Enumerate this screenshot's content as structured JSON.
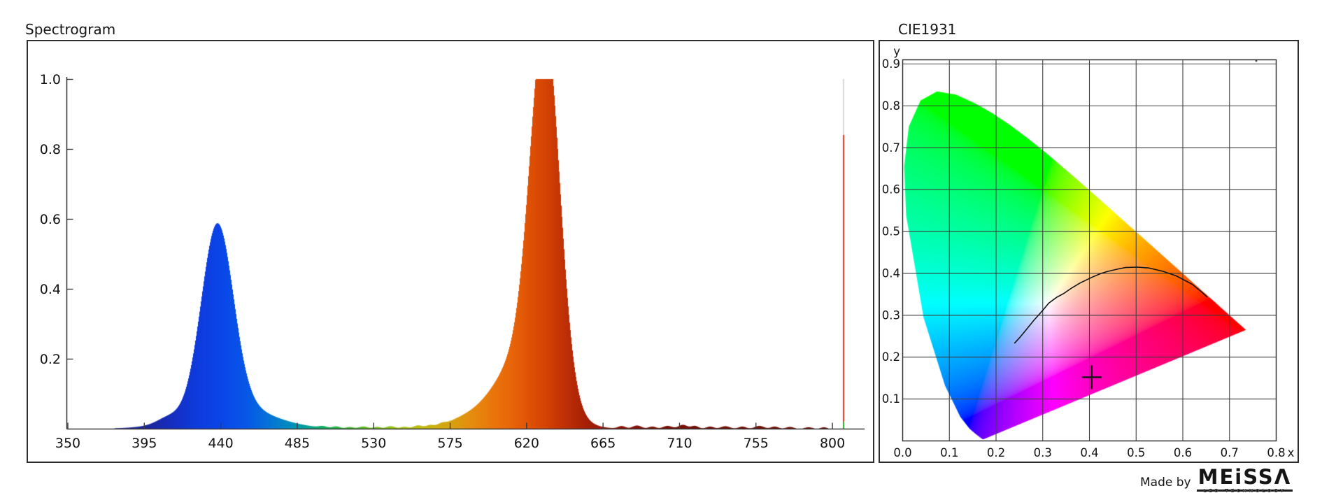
{
  "left_panel": {
    "title": "Spectrogram",
    "x_tick_labels": [
      "350",
      "395",
      "440",
      "485",
      "530",
      "575",
      "620",
      "665",
      "710",
      "755",
      "800"
    ],
    "y_tick_labels": [
      "0.2",
      "0.4",
      "0.6",
      "0.8",
      "1.0"
    ]
  },
  "right_panel": {
    "title": "CIE1931",
    "x_tick_labels": [
      "0.0",
      "0.1",
      "0.2",
      "0.3",
      "0.4",
      "0.5",
      "0.6",
      "0.7",
      "0.8"
    ],
    "x_axis_letter": "x",
    "y_axis_letter": "y",
    "y_tick_labels": [
      "0.1",
      "0.2",
      "0.3",
      "0.4",
      "0.5",
      "0.6",
      "0.7",
      "0.8",
      "0.9"
    ]
  },
  "footer": {
    "made_by": "Made by",
    "brand": "MEiSSA",
    "brand_sub": "LED TECHNOLOGY"
  },
  "chart_data": [
    {
      "type": "area",
      "title": "Spectrogram",
      "xlim": [
        350,
        815.2
      ],
      "ylim": [
        0,
        1.056
      ],
      "x_ticks": [
        350,
        395,
        440,
        485,
        530,
        575,
        620,
        665,
        710,
        755,
        800
      ],
      "y_ticks": [
        0.2,
        0.4,
        0.6,
        0.8,
        1.0
      ],
      "grid": false,
      "peaks": [
        {
          "name": "blue-led",
          "center": 438,
          "height": 0.52,
          "fwhm_nm": 22,
          "skirt": {
            "center": 444,
            "height": 0.07,
            "fwhm_nm": 55
          }
        },
        {
          "name": "red-led",
          "center": 631,
          "height": 1.0,
          "fwhm_nm": 20,
          "skirt": {
            "center": 621,
            "height": 0.2,
            "fwhm_nm": 38
          }
        }
      ],
      "spike": {
        "center": 806,
        "segments": [
          {
            "from": 0.84,
            "to": 1.0,
            "color": "#d8d8d8"
          },
          {
            "from": 0.02,
            "to": 0.84,
            "color": "#e8382a"
          },
          {
            "from": 0.0,
            "to": 0.02,
            "color": "#2fae2f"
          }
        ]
      },
      "minor_bumps": [
        [
          408,
          0.012,
          14
        ],
        [
          580,
          0.008,
          20
        ],
        [
          600,
          0.035,
          40
        ],
        [
          500,
          0.004,
          5
        ],
        [
          508,
          0.005,
          5
        ],
        [
          516,
          0.004,
          5
        ],
        [
          524,
          0.006,
          6
        ],
        [
          532,
          0.005,
          5
        ],
        [
          540,
          0.007,
          6
        ],
        [
          548,
          0.005,
          5
        ],
        [
          556,
          0.008,
          6
        ],
        [
          563,
          0.006,
          5
        ],
        [
          570,
          0.005,
          5
        ],
        [
          676,
          0.007,
          5
        ],
        [
          685,
          0.009,
          6
        ],
        [
          694,
          0.006,
          5
        ],
        [
          703,
          0.008,
          6
        ],
        [
          712,
          0.011,
          6
        ],
        [
          719,
          0.008,
          5
        ],
        [
          728,
          0.006,
          5
        ],
        [
          737,
          0.007,
          6
        ],
        [
          747,
          0.006,
          5
        ],
        [
          757,
          0.008,
          6
        ],
        [
          766,
          0.006,
          5
        ],
        [
          775,
          0.005,
          5
        ],
        [
          786,
          0.004,
          5
        ],
        [
          795,
          0.004,
          4
        ]
      ]
    },
    {
      "type": "cie_chromaticity",
      "title": "CIE1931",
      "xlim": [
        0,
        0.8
      ],
      "ylim": [
        0,
        0.91
      ],
      "x_ticks": [
        0.0,
        0.1,
        0.2,
        0.3,
        0.4,
        0.5,
        0.6,
        0.7,
        0.8
      ],
      "y_ticks": [
        0.1,
        0.2,
        0.3,
        0.4,
        0.5,
        0.6,
        0.7,
        0.8,
        0.9
      ],
      "grid": true,
      "spectral_locus": [
        [
          380,
          0.1741,
          0.005
        ],
        [
          400,
          0.1733,
          0.0048
        ],
        [
          410,
          0.1726,
          0.0048
        ],
        [
          420,
          0.1714,
          0.0051
        ],
        [
          430,
          0.1689,
          0.0069
        ],
        [
          440,
          0.1644,
          0.0109
        ],
        [
          450,
          0.1566,
          0.0177
        ],
        [
          460,
          0.144,
          0.0297
        ],
        [
          470,
          0.1241,
          0.0578
        ],
        [
          480,
          0.0913,
          0.1327
        ],
        [
          490,
          0.0454,
          0.295
        ],
        [
          500,
          0.0082,
          0.5384
        ],
        [
          505,
          0.0039,
          0.6548
        ],
        [
          510,
          0.0139,
          0.7502
        ],
        [
          515,
          0.0389,
          0.812
        ],
        [
          520,
          0.0743,
          0.8338
        ],
        [
          525,
          0.1142,
          0.8262
        ],
        [
          530,
          0.1547,
          0.8059
        ],
        [
          535,
          0.1929,
          0.7816
        ],
        [
          540,
          0.2296,
          0.7543
        ],
        [
          545,
          0.2658,
          0.7243
        ],
        [
          550,
          0.3016,
          0.6923
        ],
        [
          555,
          0.3373,
          0.6589
        ],
        [
          560,
          0.3731,
          0.6245
        ],
        [
          565,
          0.4087,
          0.5896
        ],
        [
          570,
          0.4441,
          0.5547
        ],
        [
          575,
          0.4788,
          0.5202
        ],
        [
          580,
          0.5125,
          0.4866
        ],
        [
          585,
          0.5448,
          0.4544
        ],
        [
          590,
          0.5752,
          0.4242
        ],
        [
          595,
          0.6029,
          0.3965
        ],
        [
          600,
          0.627,
          0.3725
        ],
        [
          605,
          0.6482,
          0.3514
        ],
        [
          610,
          0.6658,
          0.334
        ],
        [
          615,
          0.6801,
          0.3197
        ],
        [
          620,
          0.6915,
          0.3083
        ],
        [
          625,
          0.7006,
          0.2993
        ],
        [
          630,
          0.7079,
          0.292
        ],
        [
          640,
          0.719,
          0.2809
        ],
        [
          650,
          0.726,
          0.274
        ],
        [
          660,
          0.73,
          0.27
        ],
        [
          680,
          0.7334,
          0.2666
        ],
        [
          700,
          0.7344,
          0.2656
        ],
        [
          780,
          0.7347,
          0.2653
        ]
      ],
      "planckian_locus": [
        [
          0.24,
          0.234
        ],
        [
          0.25,
          0.246
        ],
        [
          0.262,
          0.262
        ],
        [
          0.281,
          0.288
        ],
        [
          0.298,
          0.309
        ],
        [
          0.313,
          0.329
        ],
        [
          0.33,
          0.343
        ],
        [
          0.345,
          0.352
        ],
        [
          0.362,
          0.365
        ],
        [
          0.38,
          0.377
        ],
        [
          0.406,
          0.391
        ],
        [
          0.423,
          0.399
        ],
        [
          0.437,
          0.404
        ],
        [
          0.459,
          0.41
        ],
        [
          0.477,
          0.414
        ],
        [
          0.503,
          0.415
        ],
        [
          0.527,
          0.413
        ],
        [
          0.557,
          0.405
        ],
        [
          0.586,
          0.394
        ],
        [
          0.62,
          0.374
        ],
        [
          0.64,
          0.356
        ],
        [
          0.652,
          0.344
        ]
      ],
      "marker": {
        "shape": "cross",
        "x": 0.405,
        "y": 0.152
      }
    }
  ]
}
